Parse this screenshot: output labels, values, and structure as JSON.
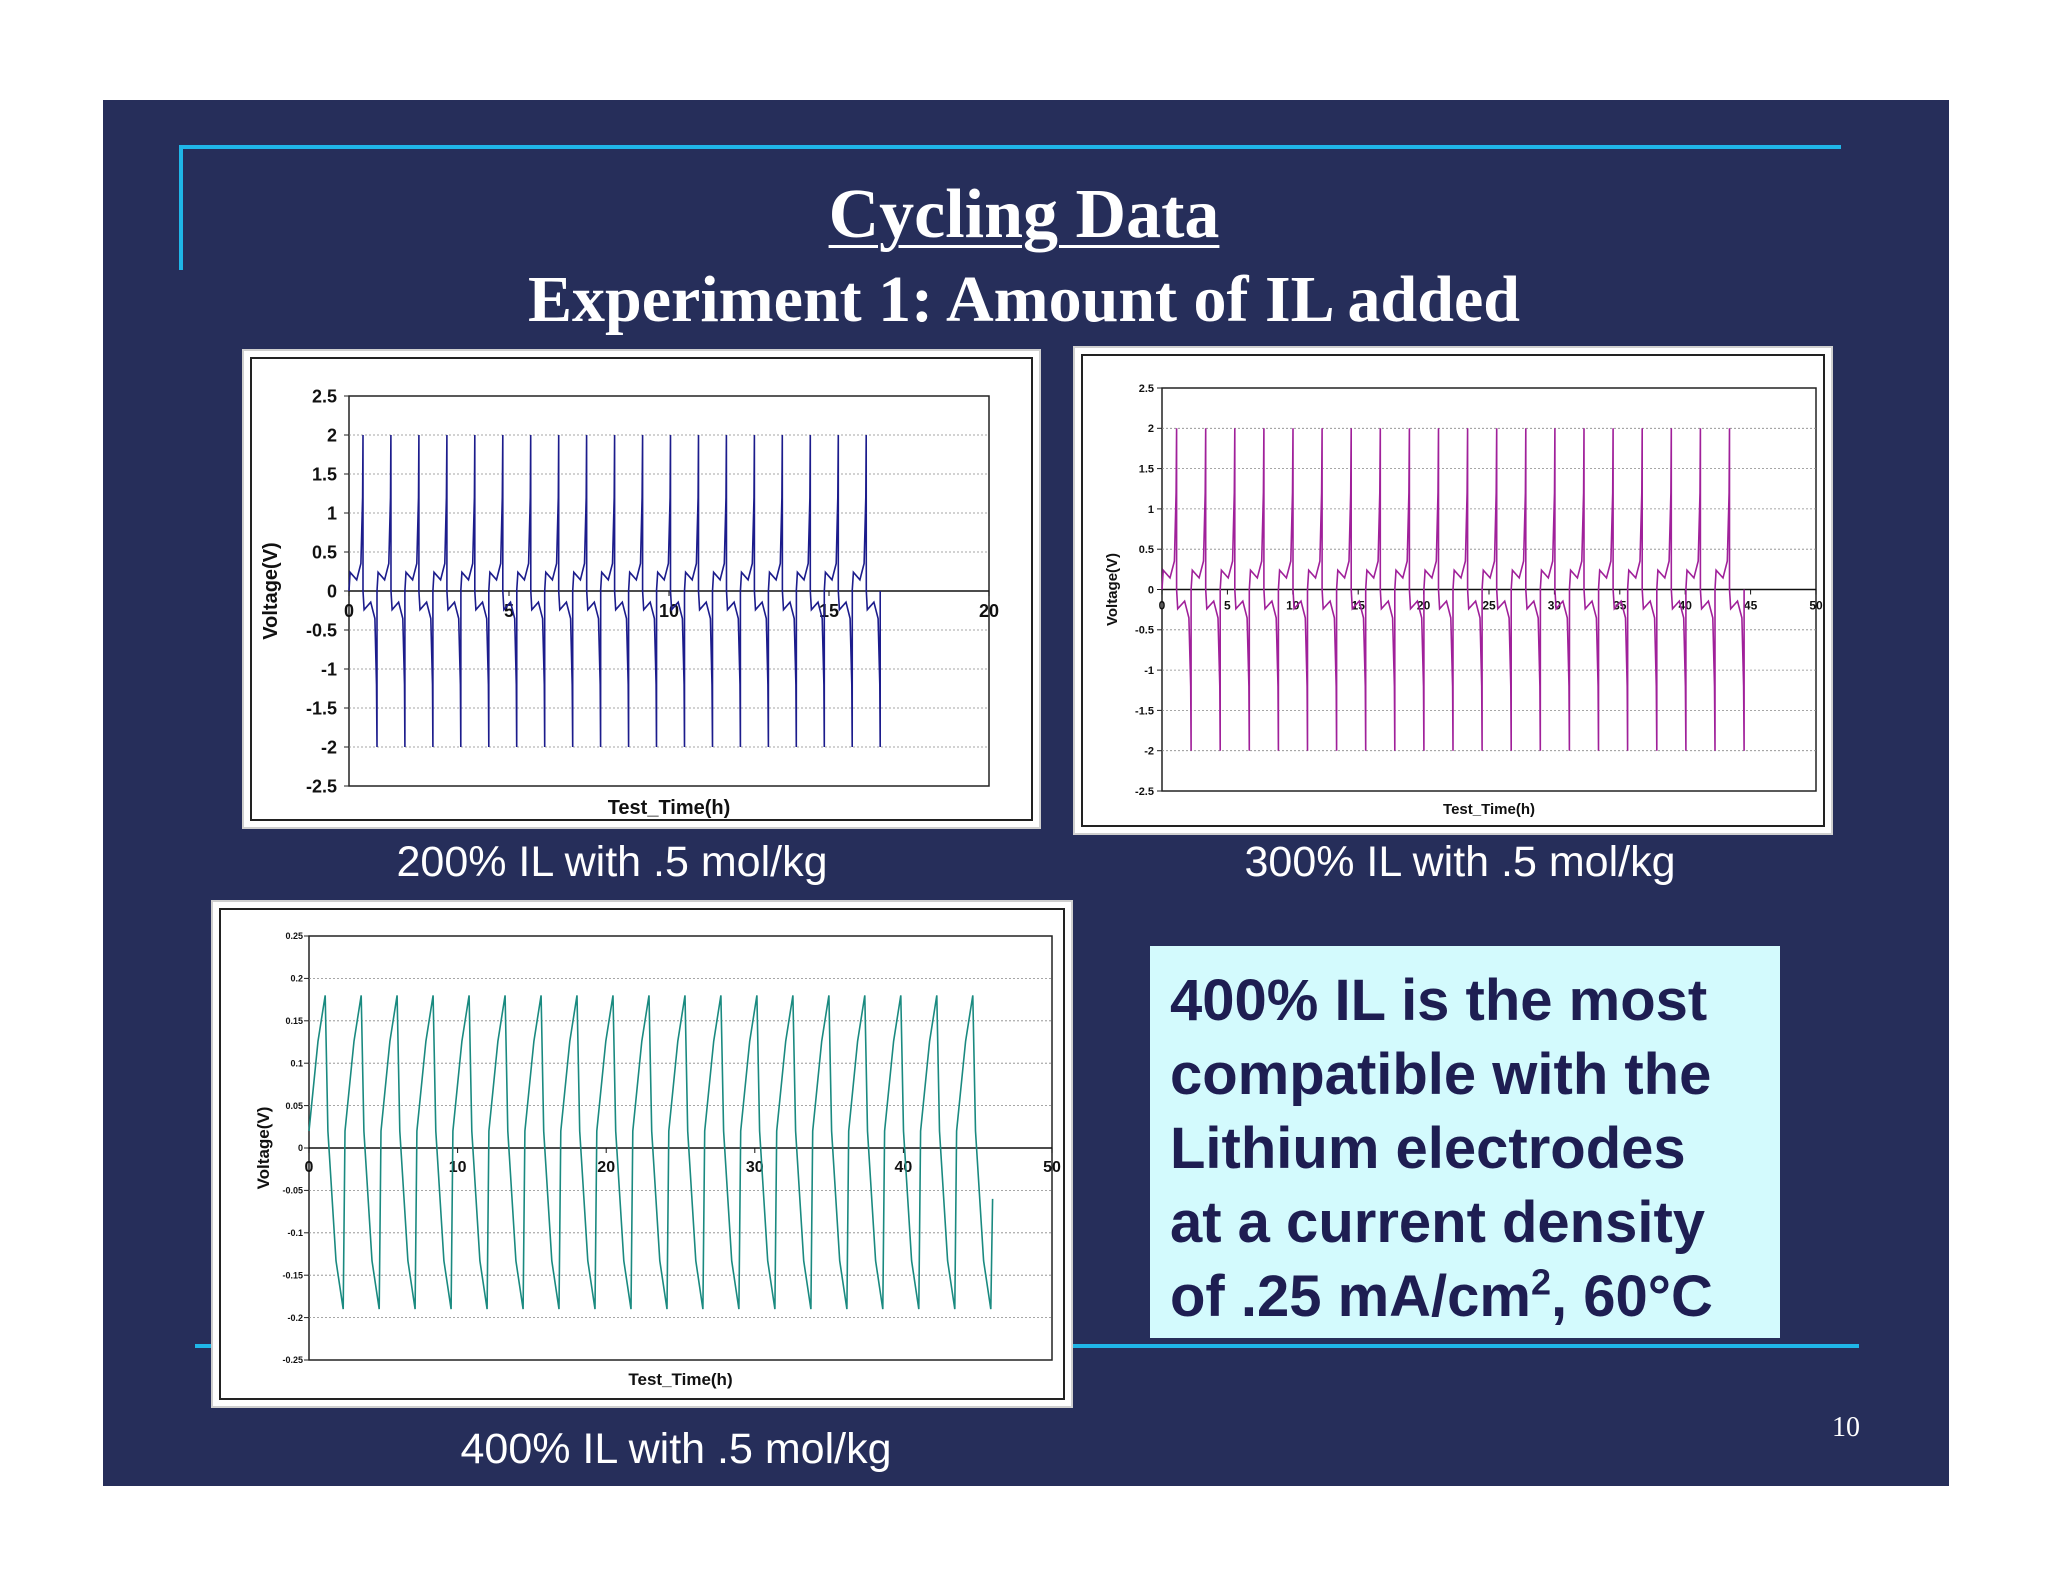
{
  "slide": {
    "title": "Cycling Data",
    "subtitle": "Experiment 1: Amount of IL added",
    "page_number": "10",
    "background_color": "#262e5a",
    "accent_color": "#1fb6e8",
    "callout": {
      "line1": "400% IL is the most",
      "line2": "compatible with the",
      "line3": "Lithium electrodes",
      "line4": "at a current density",
      "line5_pre": "of .25 mA/cm",
      "line5_sup": "2",
      "line5_post": ", 60°C",
      "background_color": "#d3fafd"
    },
    "captions": {
      "chart1": "200% IL with .5 mol/kg",
      "chart2": "300% IL with .5 mol/kg",
      "chart3": "400% IL with .5 mol/kg"
    }
  },
  "chart_data": [
    {
      "type": "line",
      "xlabel": "Test_Time(h)",
      "ylabel": "Voltage(V)",
      "xlim": [
        0,
        20
      ],
      "ylim": [
        -2.5,
        2.5
      ],
      "x_ticks": [
        "0",
        "5",
        "10",
        "15",
        "20"
      ],
      "y_ticks": [
        "2.5",
        "2",
        "1.5",
        "1",
        "0.5",
        "0",
        "-0.5",
        "-1",
        "-1.5",
        "-2",
        "-2.5"
      ],
      "grid": true,
      "color": "#1c1c8c",
      "waveform": "square-spike",
      "cycles": 19,
      "x_end": 16.6,
      "series": [
        {
          "peak": 2.0,
          "trough": -2.0
        }
      ]
    },
    {
      "type": "line",
      "xlabel": "Test_Time(h)",
      "ylabel": "Voltage(V)",
      "xlim": [
        0,
        50
      ],
      "ylim": [
        -2.5,
        2.5
      ],
      "x_ticks": [
        "0",
        "5",
        "10",
        "15",
        "20",
        "25",
        "30",
        "35",
        "40",
        "45",
        "50"
      ],
      "y_ticks": [
        "2.5",
        "2",
        "1.5",
        "1",
        "0.5",
        "0",
        "-0.5",
        "-1",
        "-1.5",
        "-2",
        "-2.5"
      ],
      "grid": true,
      "color": "#a0209a",
      "waveform": "square-spike",
      "cycles": 20,
      "x_end": 44.5,
      "series": [
        {
          "peak": 2.0,
          "trough": -2.0
        }
      ]
    },
    {
      "type": "line",
      "xlabel": "Test_Time(h)",
      "ylabel": "Voltage(V)",
      "xlim": [
        0,
        50
      ],
      "ylim": [
        -0.25,
        0.25
      ],
      "x_ticks": [
        "0",
        "10",
        "20",
        "30",
        "40",
        "50"
      ],
      "y_ticks": [
        "0.25",
        "0.2",
        "0.15",
        "0.1",
        "0.05",
        "0",
        "-0.05",
        "-0.1",
        "-0.15",
        "-0.2",
        "-0.25"
      ],
      "grid": true,
      "color": "#1a8a80",
      "waveform": "sawtooth",
      "cycles": 19,
      "x_end": 46,
      "series": [
        {
          "peak": 0.18,
          "trough": -0.19
        }
      ]
    }
  ]
}
